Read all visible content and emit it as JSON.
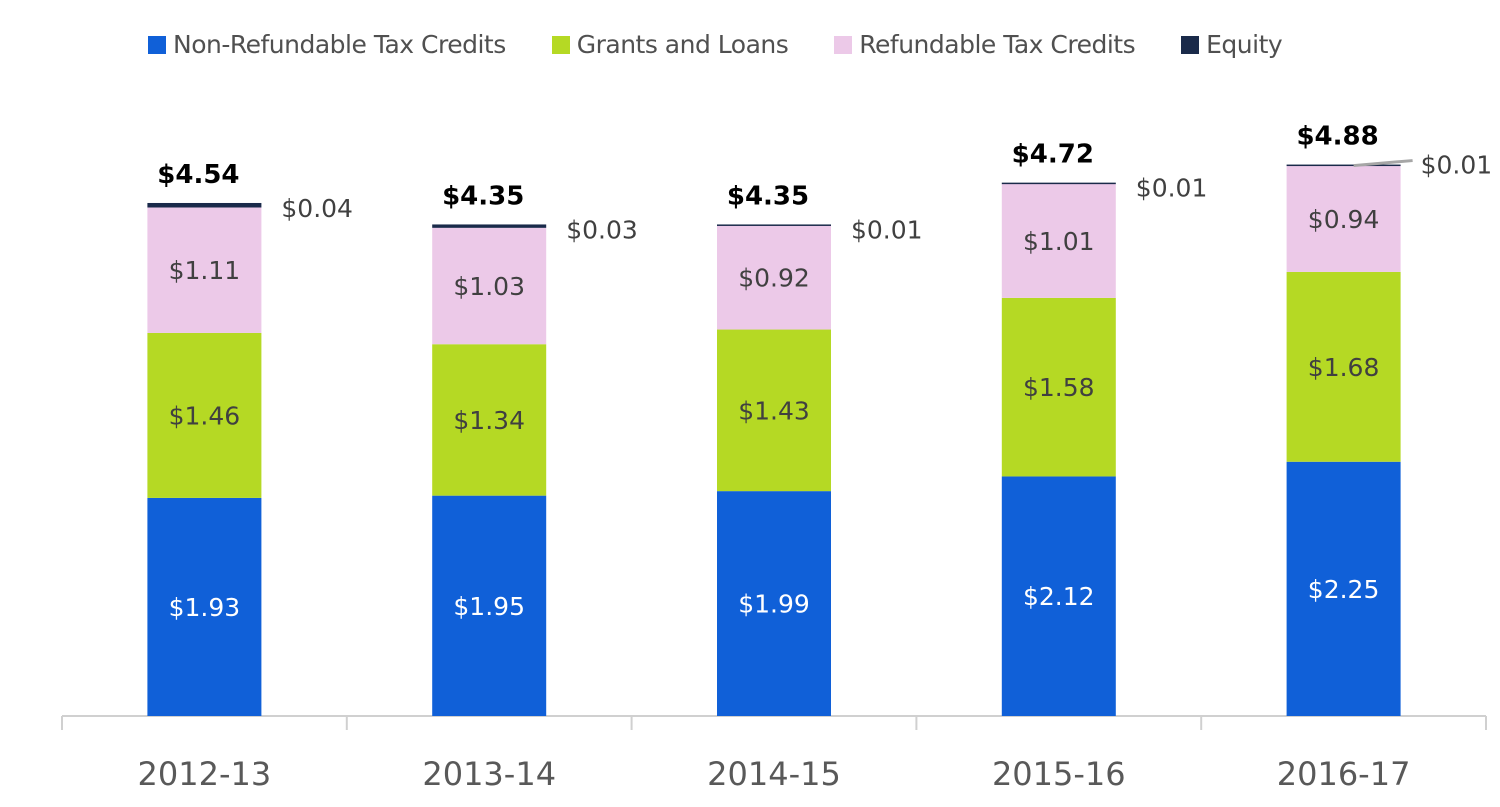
{
  "chart_data": {
    "type": "bar",
    "stacked": true,
    "categories": [
      "2012-13",
      "2013-14",
      "2014-15",
      "2015-16",
      "2016-17"
    ],
    "series": [
      {
        "name": "Non-Refundable Tax Credits",
        "color": "#1060d8",
        "values": [
          1.93,
          1.95,
          1.99,
          2.12,
          2.25
        ],
        "labels": [
          "$1.93",
          "$1.95",
          "$1.99",
          "$2.12",
          "$2.25"
        ]
      },
      {
        "name": "Grants and Loans",
        "color": "#b5d924",
        "values": [
          1.46,
          1.34,
          1.43,
          1.58,
          1.68
        ],
        "labels": [
          "$1.46",
          "$1.34",
          "$1.43",
          "$1.58",
          "$1.68"
        ]
      },
      {
        "name": "Refundable Tax Credits",
        "color": "#ecc9e8",
        "values": [
          1.11,
          1.03,
          0.92,
          1.01,
          0.94
        ],
        "labels": [
          "$1.11",
          "$1.03",
          "$0.92",
          "$1.01",
          "$0.94"
        ]
      },
      {
        "name": "Equity",
        "color": "#1a2a4a",
        "values": [
          0.04,
          0.03,
          0.01,
          0.01,
          0.01
        ],
        "labels": [
          "$0.04",
          "$0.03",
          "$0.01",
          "$0.01",
          "$0.01"
        ]
      }
    ],
    "totals": [
      4.54,
      4.35,
      4.35,
      4.72,
      4.88
    ],
    "total_labels": [
      "$4.54",
      "$4.35",
      "$4.35",
      "$4.72",
      "$4.88"
    ],
    "ylim": [
      0,
      5.2
    ],
    "grid": false,
    "legend": "top"
  }
}
